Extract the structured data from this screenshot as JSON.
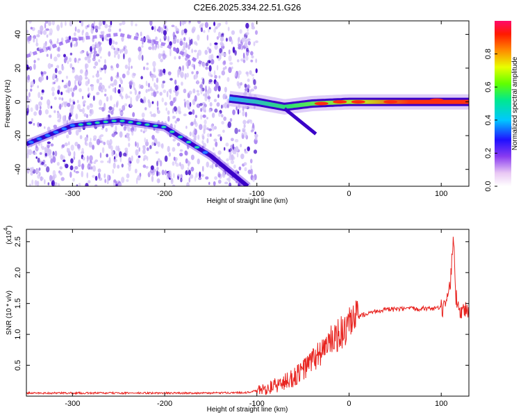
{
  "title": "C2E6.2025.334.22.51.G26",
  "colors": {
    "snr_line": "#e8231f",
    "ridge_dark": "#3a00c8",
    "ridge_light": "#9a6cf0",
    "scatter_light": "#d3c2f7",
    "scatter_mid": "#a781f0"
  },
  "chart_data": [
    {
      "type": "heatmap",
      "name": "spectrogram",
      "xlabel": "Height of straight line (km)",
      "ylabel": "Frequency (Hz)",
      "xlim": [
        -350,
        130
      ],
      "ylim": [
        -50,
        48
      ],
      "xticks": [
        -300,
        -200,
        -100,
        0,
        100
      ],
      "yticks": [
        -40,
        -20,
        0,
        20,
        40
      ],
      "xtick_labels": [
        "-300",
        "-200",
        "-100",
        "0",
        "100"
      ],
      "ytick_labels": [
        "-40",
        "-20",
        "0",
        "20",
        "40"
      ],
      "features": {
        "main_arc": {
          "description_points": [
            {
              "x": -350,
              "y": -25
            },
            {
              "x": -300,
              "y": -14
            },
            {
              "x": -250,
              "y": -11
            },
            {
              "x": -200,
              "y": -15
            },
            {
              "x": -150,
              "y": -32
            },
            {
              "x": -110,
              "y": -50
            }
          ],
          "amplitude_peak": 0.45
        },
        "faint_upper_arc": [
          {
            "x": -350,
            "y": 27
          },
          {
            "x": -300,
            "y": 37
          },
          {
            "x": -250,
            "y": 40
          },
          {
            "x": -200,
            "y": 34
          },
          {
            "x": -160,
            "y": 23
          }
        ],
        "central_band": [
          {
            "x": -130,
            "y": 2
          },
          {
            "x": -100,
            "y": 0
          },
          {
            "x": -70,
            "y": -3
          },
          {
            "x": -40,
            "y": -1
          },
          {
            "x": 0,
            "y": 0
          },
          {
            "x": 130,
            "y": 0
          }
        ],
        "band_peak_amplitude": 0.9
      }
    },
    {
      "type": "colorbar",
      "label": "Normalized spectral amplitude",
      "range": [
        0,
        1
      ],
      "ticks": [
        0.0,
        0.2,
        0.4,
        0.6,
        0.8
      ],
      "tick_labels": [
        "0.0",
        "0.2",
        "0.4",
        "0.6",
        "0.8"
      ]
    },
    {
      "type": "line",
      "name": "snr",
      "xlabel": "Height of straight line (km)",
      "ylabel": "SNR (10 * v/v)",
      "scale_label": "(x10",
      "scale_exponent": "4",
      "xlim": [
        -350,
        130
      ],
      "ylim": [
        0,
        2.7
      ],
      "xticks": [
        -300,
        -200,
        -100,
        0,
        100
      ],
      "yticks": [
        0.5,
        1.0,
        1.5,
        2.0,
        2.5
      ],
      "xtick_labels": [
        "-300",
        "-200",
        "-100",
        "0",
        "100"
      ],
      "ytick_labels": [
        "0.5",
        "1.0",
        "1.5",
        "2.0",
        "2.5"
      ],
      "series": [
        {
          "name": "SNR",
          "x": [
            -350,
            -300,
            -250,
            -200,
            -150,
            -110,
            -90,
            -70,
            -55,
            -45,
            -35,
            -25,
            -15,
            -5,
            0,
            10,
            20,
            30,
            40,
            60,
            80,
            100,
            105,
            110,
            113,
            116,
            120,
            130
          ],
          "y": [
            0.05,
            0.05,
            0.05,
            0.05,
            0.05,
            0.06,
            0.12,
            0.22,
            0.35,
            0.5,
            0.65,
            0.8,
            0.95,
            1.05,
            1.12,
            1.28,
            1.35,
            1.38,
            1.4,
            1.41,
            1.42,
            1.42,
            1.4,
            1.8,
            2.65,
            1.6,
            1.4,
            1.4
          ]
        }
      ]
    }
  ]
}
